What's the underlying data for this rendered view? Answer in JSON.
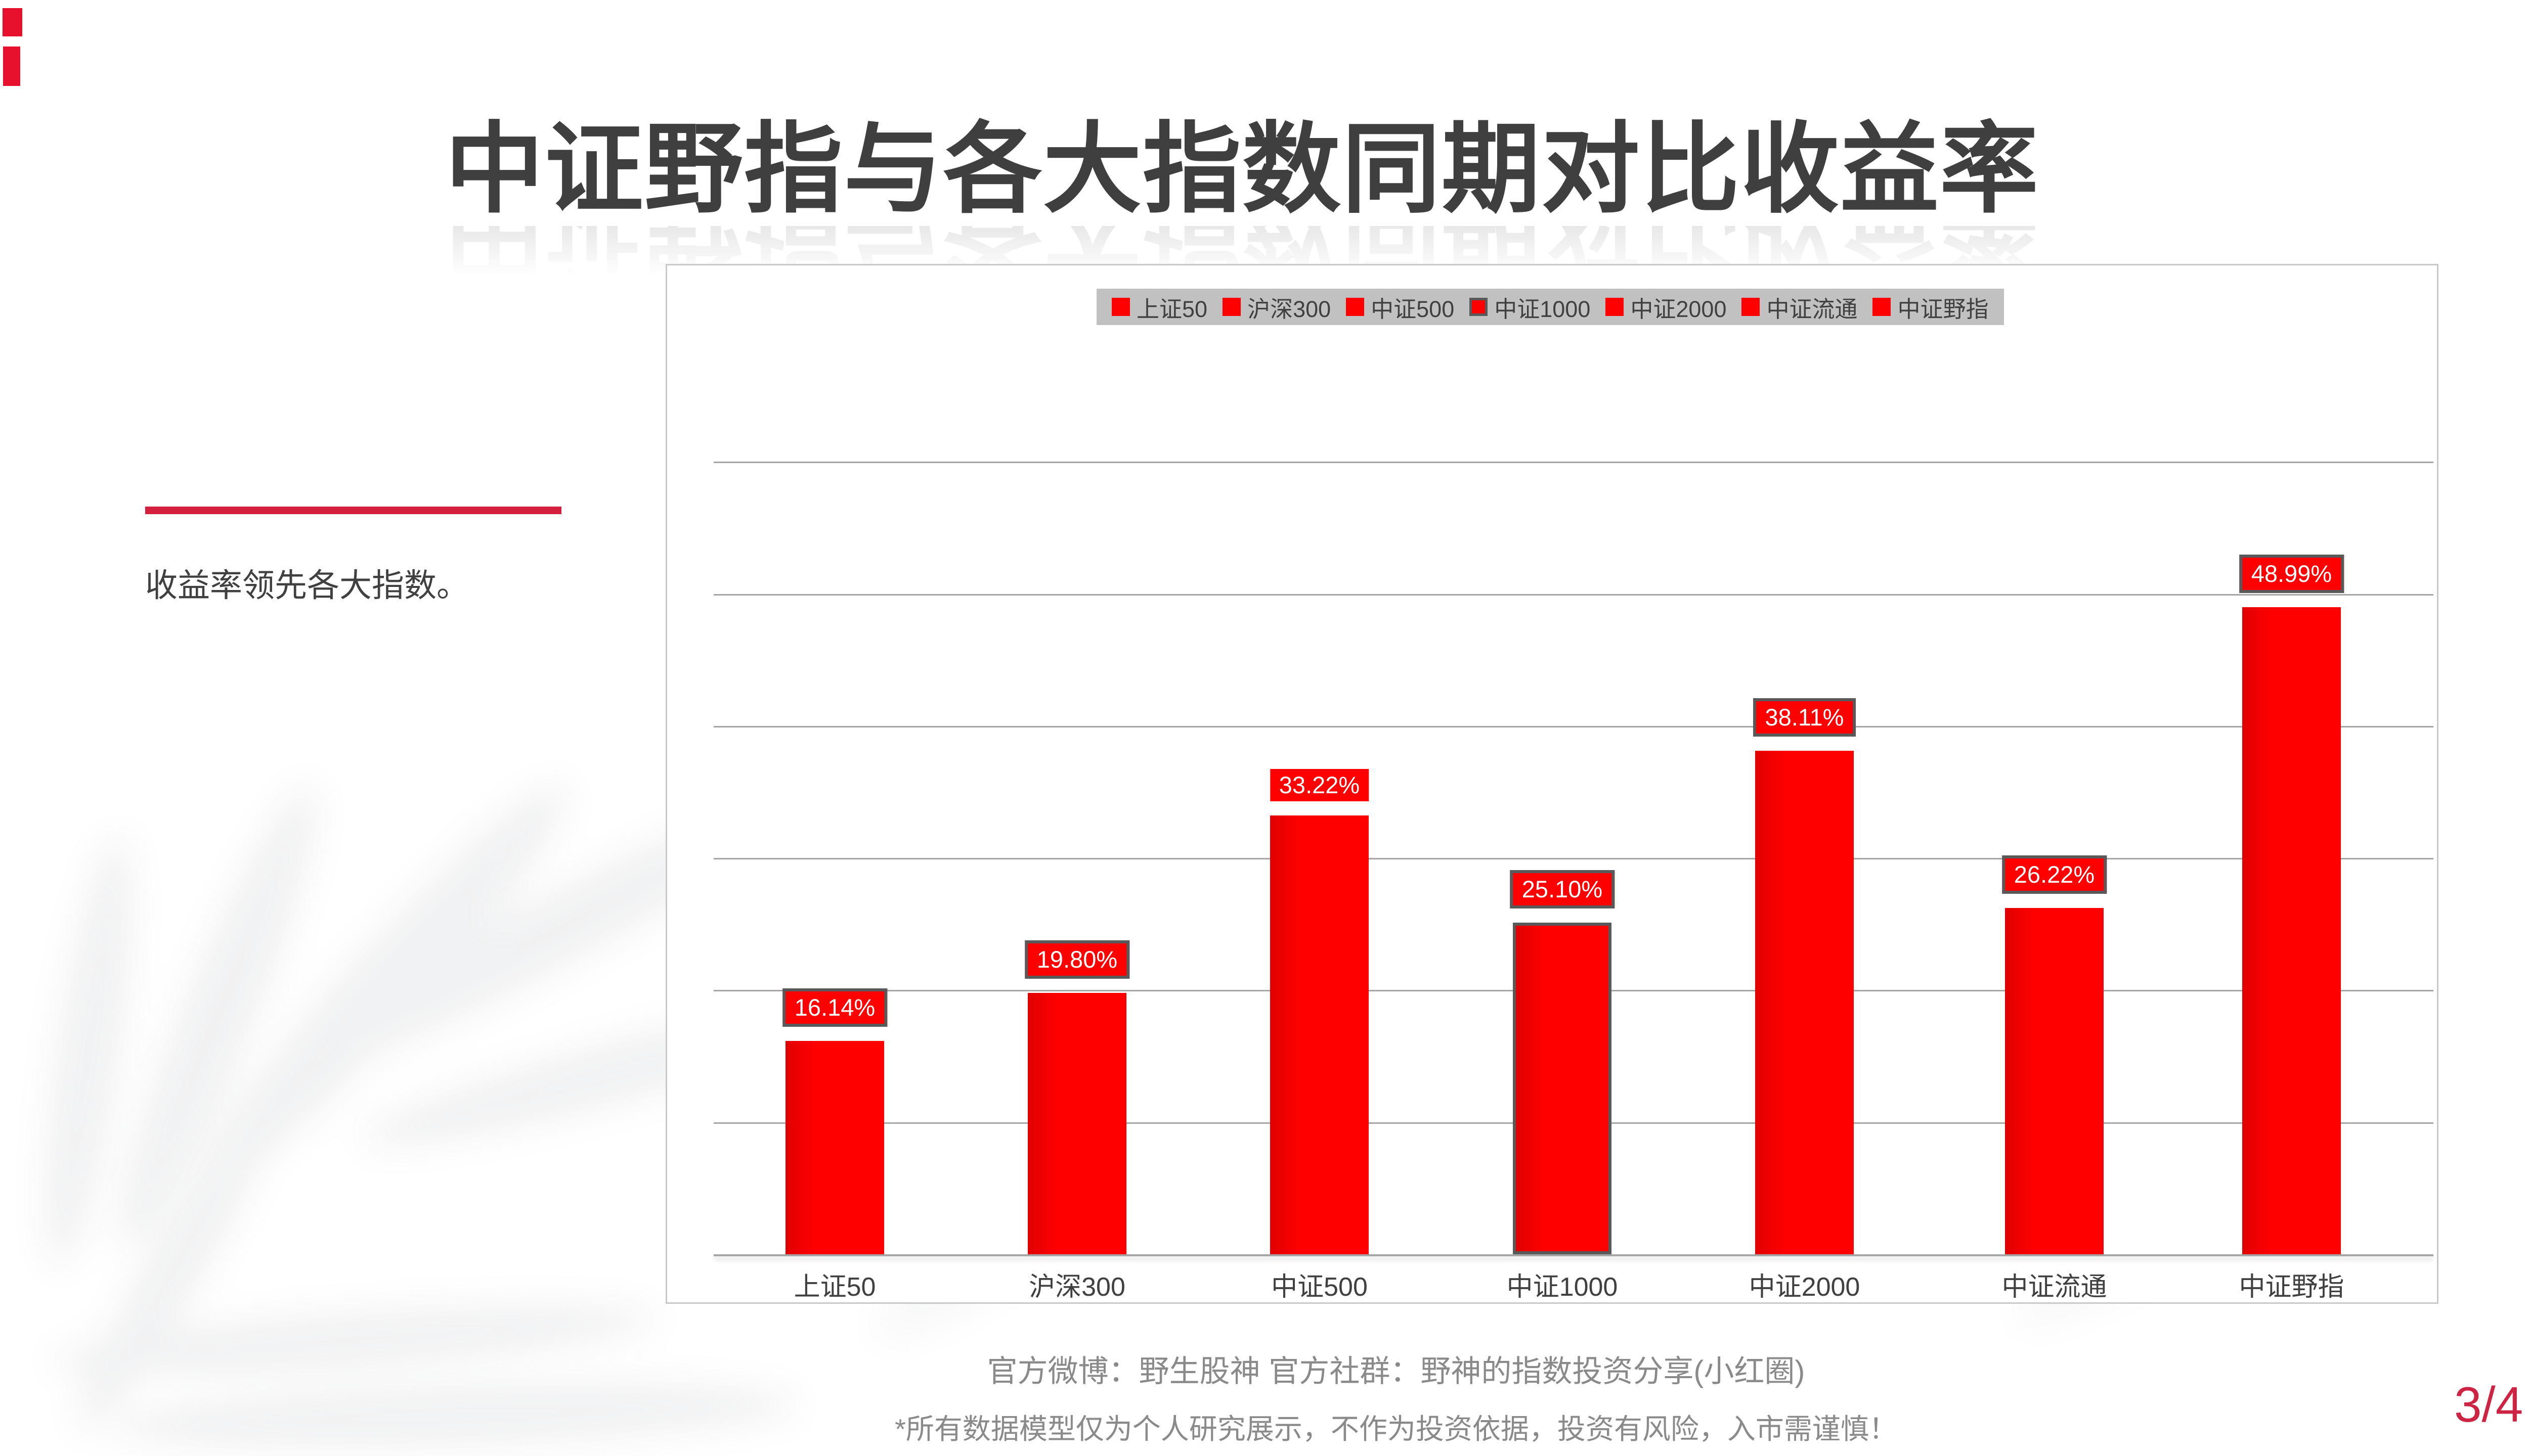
{
  "slide": {
    "title": "中证野指与各大指数同期对比收益率",
    "side_note": "收益率领先各大指数。",
    "footer_line1": "官方微博：野生股神  官方社群：野神的指数投资分享(小红圈)",
    "footer_line2": "*所有数据模型仅为个人研究展示，不作为投资依据，投资有风险，入市需谨慎！",
    "page_number": "3/4"
  },
  "colors": {
    "bar_red": "#FE0000",
    "bar_red_dark_edge": "#E10000",
    "outline_gray": "#595959",
    "accent_line": "#D51F3F",
    "title_text": "#3F3F3F",
    "body_text": "#404040",
    "footer_text": "#8A8A8A",
    "page_number": "#CE2443",
    "legend_bg": "#C1C1C1",
    "gridline": "#A6A6A6",
    "chart_border": "#C9C9C9",
    "corner_mark": "#E8112D",
    "label_text": "#FFFFFF"
  },
  "chart_data": {
    "type": "bar",
    "categories": [
      "上证50",
      "沪深300",
      "中证500",
      "中证1000",
      "中证2000",
      "中证流通",
      "中证野指"
    ],
    "values": [
      16.14,
      19.8,
      33.22,
      25.1,
      38.11,
      26.22,
      48.99
    ],
    "data_labels": [
      "16.14%",
      "19.80%",
      "33.22%",
      "25.10%",
      "38.11%",
      "26.22%",
      "48.99%"
    ],
    "legend_entries": [
      "上证50",
      "沪深300",
      "中证500",
      "中证1000",
      "中证2000",
      "中证流通",
      "中证野指"
    ],
    "title": "",
    "xlabel": "",
    "ylabel": "",
    "ylim": [
      0,
      60
    ],
    "grid_interval_pct": 10,
    "grid": true,
    "legend_position": "top-center",
    "y_axis_labels_visible": false,
    "bordered_label_indexes": [
      0,
      1,
      3,
      4,
      5,
      6
    ],
    "bordered_bar_indexes": [
      3
    ],
    "bordered_legend_indexes": [
      3
    ]
  }
}
